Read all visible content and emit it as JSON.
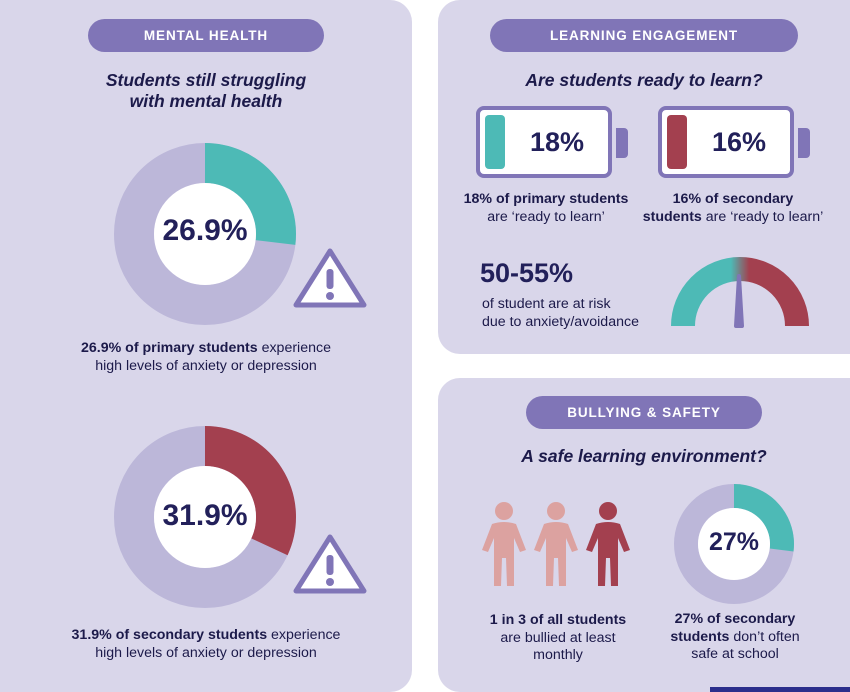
{
  "mental_health": {
    "pill": "MENTAL HEALTH",
    "heading_line1": "Students still struggling",
    "heading_line2": "with mental health",
    "primary": {
      "value_label": "26.9%",
      "percent": 26.9,
      "color": "#4dbab6",
      "caption_bold": "26.9% of primary students",
      "caption_rest": " experience",
      "caption_line2": "high levels of anxiety or depression"
    },
    "secondary": {
      "value_label": "31.9%",
      "percent": 31.9,
      "color": "#a3404f",
      "caption_bold": "31.9% of secondary students",
      "caption_rest": " experience",
      "caption_line2": "high levels of anxiety or depression"
    },
    "warning_icon": "warning-triangle-icon"
  },
  "learning_engagement": {
    "pill": "LEARNING ENGAGEMENT",
    "heading": "Are students ready to learn?",
    "primary": {
      "value_label": "18%",
      "color": "#4dbab6",
      "caption_line1": "18% of primary students",
      "caption_line2": "are ‘ready to learn’"
    },
    "secondary": {
      "value_label": "16%",
      "color": "#a3404f",
      "caption_line1": "16% of secondary",
      "caption_bold2": "students",
      "caption_line2": " are ‘ready to learn’"
    },
    "risk": {
      "value_label": "50-55%",
      "line1": "of student are at risk",
      "line2": "due to anxiety/avoidance",
      "gauge_icon": "gauge-icon"
    }
  },
  "bullying": {
    "pill": "BULLYING & SAFETY",
    "heading": "A safe learning environment?",
    "people": {
      "icon": "person-icon",
      "total": 3,
      "highlighted": 1,
      "caption_bold": "1 in 3 of all students",
      "caption_line2": "are bullied at least",
      "caption_line3": "monthly"
    },
    "safety": {
      "value_label": "27%",
      "percent": 27,
      "color": "#4dbab6",
      "caption_line1": "27% of secondary",
      "caption_bold2": "students",
      "caption_line2": " don’t often",
      "caption_line3": "safe at school"
    }
  },
  "colors": {
    "panel": "#d9d6ea",
    "pill": "#8075b7",
    "donut_track": "#bcb7d9",
    "teal": "#4dbab6",
    "maroon": "#a3404f",
    "pink": "#dca2a0",
    "navy": "#22205a"
  }
}
